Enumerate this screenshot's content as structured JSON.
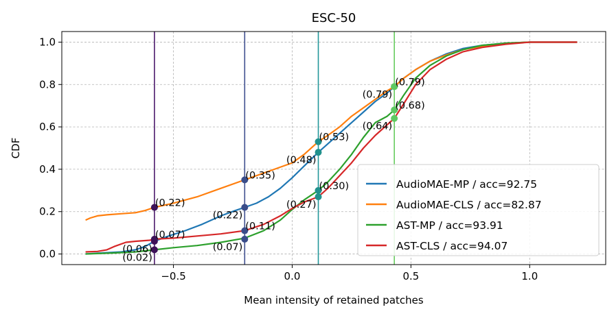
{
  "chart_data": {
    "type": "line",
    "title": "ESC-50",
    "xlabel": "Mean intensity of retained patches",
    "ylabel": "CDF",
    "xlim": [
      -0.97,
      1.32
    ],
    "ylim": [
      -0.05,
      1.05
    ],
    "xticks": [
      -0.5,
      0.0,
      0.5,
      1.0
    ],
    "xtick_labels": [
      "−0.5",
      "0.0",
      "0.5",
      "1.0"
    ],
    "yticks": [
      0.0,
      0.2,
      0.4,
      0.6,
      0.8,
      1.0
    ],
    "ytick_labels": [
      "0.0",
      "0.2",
      "0.4",
      "0.6",
      "0.8",
      "1.0"
    ],
    "grid": true,
    "legend_position": "lower-right",
    "series": [
      {
        "name": "AudioMAE-MP / acc=92.75",
        "color": "#1f77b4",
        "x": [
          -0.87,
          -0.8,
          -0.72,
          -0.66,
          -0.62,
          -0.58,
          -0.52,
          -0.45,
          -0.38,
          -0.3,
          -0.24,
          -0.2,
          -0.15,
          -0.1,
          -0.05,
          0.0,
          0.05,
          0.11,
          0.15,
          0.2,
          0.25,
          0.3,
          0.35,
          0.4,
          0.43,
          0.47,
          0.52,
          0.58,
          0.65,
          0.72,
          0.8,
          0.9,
          1.0,
          1.1,
          1.2
        ],
        "y": [
          0.0,
          0.005,
          0.01,
          0.02,
          0.035,
          0.06,
          0.085,
          0.11,
          0.14,
          0.18,
          0.205,
          0.22,
          0.24,
          0.27,
          0.31,
          0.36,
          0.415,
          0.48,
          0.52,
          0.57,
          0.62,
          0.67,
          0.72,
          0.76,
          0.79,
          0.83,
          0.87,
          0.91,
          0.945,
          0.97,
          0.985,
          0.995,
          1.0,
          1.0,
          1.0
        ]
      },
      {
        "name": "AudioMAE-CLS / acc=82.87",
        "color": "#ff7f0e",
        "x": [
          -0.87,
          -0.85,
          -0.82,
          -0.78,
          -0.72,
          -0.66,
          -0.62,
          -0.58,
          -0.5,
          -0.4,
          -0.3,
          -0.2,
          -0.1,
          0.0,
          0.05,
          0.11,
          0.15,
          0.2,
          0.25,
          0.3,
          0.35,
          0.4,
          0.43,
          0.47,
          0.52,
          0.58,
          0.65,
          0.72,
          0.8,
          0.9,
          1.0,
          1.1,
          1.2
        ],
        "y": [
          0.16,
          0.17,
          0.18,
          0.185,
          0.19,
          0.195,
          0.205,
          0.22,
          0.24,
          0.27,
          0.31,
          0.35,
          0.39,
          0.43,
          0.47,
          0.53,
          0.56,
          0.6,
          0.65,
          0.69,
          0.73,
          0.77,
          0.79,
          0.83,
          0.87,
          0.91,
          0.94,
          0.965,
          0.98,
          0.995,
          1.0,
          1.0,
          1.0
        ]
      },
      {
        "name": "AST-MP / acc=93.91",
        "color": "#2ca02c",
        "x": [
          -0.87,
          -0.75,
          -0.66,
          -0.58,
          -0.5,
          -0.4,
          -0.3,
          -0.2,
          -0.12,
          -0.05,
          0.0,
          0.05,
          0.11,
          0.15,
          0.2,
          0.25,
          0.3,
          0.35,
          0.4,
          0.43,
          0.47,
          0.52,
          0.58,
          0.65,
          0.72,
          0.8,
          0.9,
          1.0,
          1.1,
          1.2
        ],
        "y": [
          0.0,
          0.005,
          0.01,
          0.02,
          0.03,
          0.04,
          0.055,
          0.075,
          0.11,
          0.16,
          0.21,
          0.255,
          0.3,
          0.34,
          0.4,
          0.47,
          0.55,
          0.62,
          0.65,
          0.68,
          0.75,
          0.83,
          0.89,
          0.935,
          0.965,
          0.985,
          0.995,
          1.0,
          1.0,
          1.0
        ]
      },
      {
        "name": "AST-CLS / acc=94.07",
        "color": "#d62728",
        "x": [
          -0.87,
          -0.82,
          -0.78,
          -0.75,
          -0.7,
          -0.66,
          -0.6,
          -0.58,
          -0.5,
          -0.4,
          -0.3,
          -0.2,
          -0.12,
          -0.05,
          0.0,
          0.05,
          0.11,
          0.15,
          0.2,
          0.25,
          0.3,
          0.35,
          0.4,
          0.43,
          0.47,
          0.52,
          0.58,
          0.65,
          0.72,
          0.8,
          0.9,
          1.0,
          1.1,
          1.2
        ],
        "y": [
          0.01,
          0.012,
          0.02,
          0.035,
          0.055,
          0.06,
          0.065,
          0.07,
          0.075,
          0.085,
          0.095,
          0.11,
          0.14,
          0.18,
          0.215,
          0.245,
          0.27,
          0.31,
          0.37,
          0.43,
          0.5,
          0.56,
          0.61,
          0.64,
          0.71,
          0.8,
          0.87,
          0.92,
          0.955,
          0.975,
          0.99,
          1.0,
          1.0,
          1.0
        ]
      }
    ],
    "vlines": [
      {
        "x": -0.58,
        "color": "#4b1a6b"
      },
      {
        "x": -0.2,
        "color": "#3f4f8f"
      },
      {
        "x": 0.11,
        "color": "#23979a"
      },
      {
        "x": 0.43,
        "color": "#66cc5e"
      }
    ],
    "markers": [
      {
        "x": -0.58,
        "y": 0.22,
        "color": "#3d1258",
        "label": "(0.22)",
        "anchor": "right"
      },
      {
        "x": -0.58,
        "y": 0.07,
        "color": "#3d1258",
        "label": "(0.07)",
        "anchor": "right"
      },
      {
        "x": -0.58,
        "y": 0.06,
        "color": "#3d1258",
        "label": "(0.06)",
        "anchor": "left"
      },
      {
        "x": -0.58,
        "y": 0.02,
        "color": "#3d1258",
        "label": "(0.02)",
        "anchor": "left"
      },
      {
        "x": -0.2,
        "y": 0.35,
        "color": "#3a4d8a",
        "label": "(0.35)",
        "anchor": "right"
      },
      {
        "x": -0.2,
        "y": 0.22,
        "color": "#3a4d8a",
        "label": "(0.22)",
        "anchor": "left"
      },
      {
        "x": -0.2,
        "y": 0.11,
        "color": "#3a4d8a",
        "label": "(0.11)",
        "anchor": "right"
      },
      {
        "x": -0.2,
        "y": 0.07,
        "color": "#3a4d8a",
        "label": "(0.07)",
        "anchor": "left"
      },
      {
        "x": 0.11,
        "y": 0.53,
        "color": "#21918c",
        "label": "(0.53)",
        "anchor": "right"
      },
      {
        "x": 0.11,
        "y": 0.48,
        "color": "#21918c",
        "label": "(0.48)",
        "anchor": "left"
      },
      {
        "x": 0.11,
        "y": 0.3,
        "color": "#21918c",
        "label": "(0.30)",
        "anchor": "right"
      },
      {
        "x": 0.11,
        "y": 0.27,
        "color": "#21918c",
        "label": "(0.27)",
        "anchor": "left"
      },
      {
        "x": 0.43,
        "y": 0.79,
        "color": "#5ec962",
        "label": "(0.79)",
        "anchor": "right"
      },
      {
        "x": 0.43,
        "y": 0.79,
        "color": "#5ec962",
        "label": "(0.79)",
        "anchor": "left"
      },
      {
        "x": 0.43,
        "y": 0.68,
        "color": "#5ec962",
        "label": "(0.68)",
        "anchor": "right"
      },
      {
        "x": 0.43,
        "y": 0.64,
        "color": "#5ec962",
        "label": "(0.64)",
        "anchor": "left"
      }
    ]
  }
}
